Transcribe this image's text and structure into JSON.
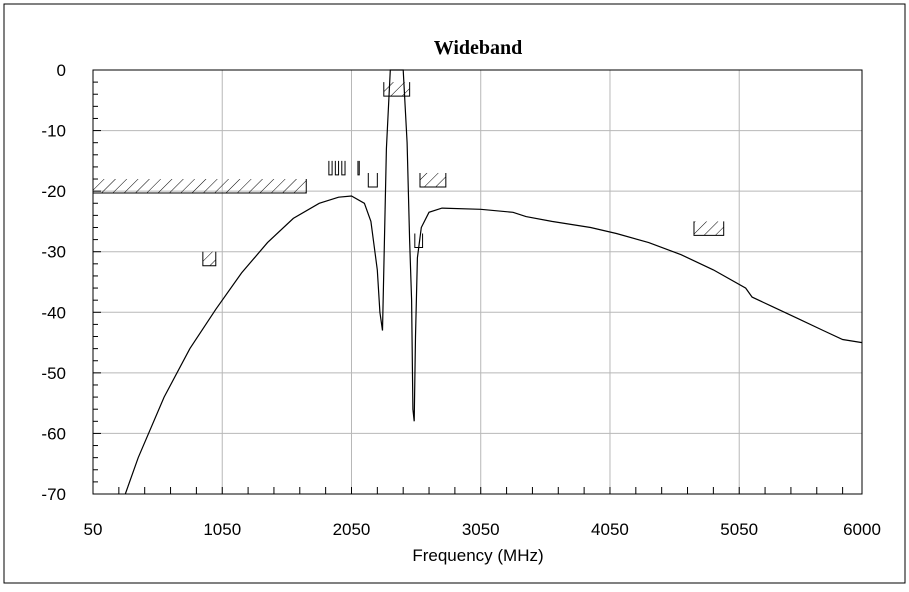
{
  "chart_data": {
    "type": "line",
    "title": "Wideband",
    "xlabel": "Frequency (MHz)",
    "ylabel": "",
    "xlim": [
      50,
      6000
    ],
    "ylim": [
      -70,
      0
    ],
    "grid": true,
    "x_tick_labels": [
      "50",
      "1050",
      "2050",
      "3050",
      "4050",
      "5050",
      "6000"
    ],
    "x_ticks": [
      50,
      1050,
      2050,
      3050,
      4050,
      5050,
      6000
    ],
    "y_tick_labels": [
      "0",
      "-10",
      "-20",
      "-30",
      "-40",
      "-50",
      "-60",
      "-70"
    ],
    "y_ticks": [
      0,
      -10,
      -20,
      -30,
      -40,
      -50,
      -60,
      -70
    ],
    "series": [
      {
        "x": [
          300,
          400,
          600,
          800,
          1000,
          1200,
          1400,
          1600,
          1800,
          1950,
          2050,
          2150,
          2200,
          2250,
          2270,
          2290,
          2320,
          2350,
          2400,
          2450,
          2480,
          2500,
          2515,
          2525,
          2535,
          2545,
          2560,
          2590,
          2650,
          2750,
          3050,
          3300,
          3400,
          3600,
          3900,
          4100,
          4350,
          4600,
          4850,
          5100,
          5150,
          5300,
          5500,
          5700,
          5850,
          6000
        ],
        "y": [
          -70,
          -64,
          -54,
          -46,
          -39.5,
          -33.5,
          -28.5,
          -24.5,
          -22,
          -21,
          -20.8,
          -22,
          -25,
          -33,
          -40,
          -43,
          -13,
          0,
          0,
          0,
          -12,
          -28,
          -38,
          -56,
          -58,
          -44,
          -31,
          -26,
          -23.5,
          -22.8,
          -23,
          -23.5,
          -24.2,
          -25,
          -26,
          -27,
          -28.5,
          -30.5,
          -33,
          -36,
          -37.5,
          -39,
          -41,
          -43,
          -44.5,
          -45
        ]
      }
    ],
    "mask_segments": [
      {
        "x": [
          50,
          1700
        ],
        "y": -18,
        "hatched": true
      },
      {
        "x": [
          900,
          1000
        ],
        "y": -30,
        "hatched": true
      },
      {
        "x": [
          1875,
          1900
        ],
        "y": -15,
        "hatched": false
      },
      {
        "x": [
          1925,
          1950
        ],
        "y": -15,
        "hatched": false
      },
      {
        "x": [
          1975,
          2000
        ],
        "y": -15,
        "hatched": false
      },
      {
        "x": [
          2100,
          2110
        ],
        "y": -15,
        "hatched": false
      },
      {
        "x": [
          2180,
          2250
        ],
        "y": -17,
        "hatched": false
      },
      {
        "x": [
          2300,
          2500
        ],
        "y": -2,
        "hatched": true
      },
      {
        "x": [
          2540,
          2600
        ],
        "y": -27,
        "hatched": false
      },
      {
        "x": [
          2580,
          2780
        ],
        "y": -17,
        "hatched": true
      },
      {
        "x": [
          4700,
          4930
        ],
        "y": -25,
        "hatched": true
      }
    ]
  }
}
